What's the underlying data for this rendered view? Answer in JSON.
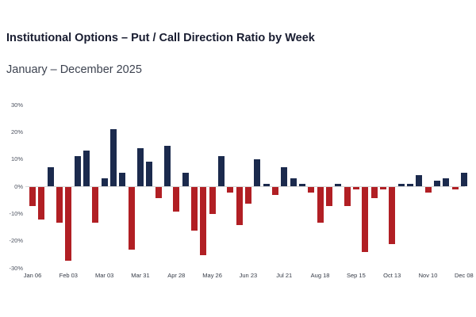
{
  "header": {
    "title": "Institutional Options – Put / Call Direction Ratio by Week",
    "subtitle": "January – December 2025"
  },
  "chart_data": {
    "type": "bar",
    "title": "Institutional Options – Put / Call Direction Ratio by Week",
    "subtitle": "January – December 2025",
    "xlabel": "",
    "ylabel": "",
    "ylim": [
      -30,
      30
    ],
    "grid": false,
    "legend": "none",
    "baseline": 0,
    "unit": "%",
    "colors": {
      "positive": "#1b2a4d",
      "negative": "#b11f24",
      "baseline": "#d8d8d8"
    },
    "y_ticks": [
      30,
      20,
      10,
      0,
      -10,
      -20,
      -30
    ],
    "y_tick_labels": [
      "30%",
      "20%",
      "10%",
      "0%",
      "-10%",
      "-20%",
      "-30%"
    ],
    "x_tick_every": 4,
    "x_tick_labels": [
      "Jan 06",
      "Feb 03",
      "Mar 03",
      "Mar 31",
      "Apr 28",
      "May 26",
      "Jun 23",
      "Jul 21",
      "Aug 18",
      "Sep 15",
      "Oct 13",
      "Nov 10",
      "Dec 08"
    ],
    "categories": [
      "Jan 06",
      "Jan 13",
      "Jan 20",
      "Jan 27",
      "Feb 03",
      "Feb 10",
      "Feb 17",
      "Feb 24",
      "Mar 03",
      "Mar 10",
      "Mar 17",
      "Mar 24",
      "Mar 31",
      "Apr 07",
      "Apr 14",
      "Apr 21",
      "Apr 28",
      "May 05",
      "May 12",
      "May 19",
      "May 26",
      "Jun 02",
      "Jun 09",
      "Jun 16",
      "Jun 23",
      "Jun 30",
      "Jul 07",
      "Jul 14",
      "Jul 21",
      "Jul 28",
      "Aug 04",
      "Aug 11",
      "Aug 18",
      "Aug 25",
      "Sep 01",
      "Sep 08",
      "Sep 15",
      "Sep 22",
      "Sep 29",
      "Oct 06",
      "Oct 13",
      "Oct 20",
      "Oct 27",
      "Nov 03",
      "Nov 10",
      "Nov 17",
      "Nov 24",
      "Dec 01",
      "Dec 08"
    ],
    "values": [
      -7,
      -12,
      7,
      -13,
      -27,
      11,
      13,
      -13,
      3,
      21,
      5,
      -23,
      14,
      9,
      -4,
      15,
      -9,
      5,
      -16,
      -25,
      -10,
      11,
      -2,
      -14,
      -6,
      10,
      1,
      -3,
      7,
      3,
      1,
      -2,
      -13,
      -7,
      1,
      -7,
      -1,
      -24,
      -4,
      -1,
      -21,
      1,
      1,
      4,
      -2,
      2,
      3,
      -1,
      5
    ]
  }
}
